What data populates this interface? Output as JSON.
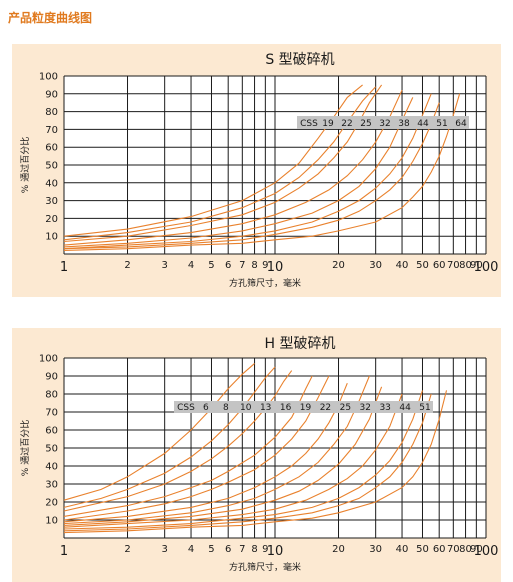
{
  "page": {
    "title": "产品粒度曲线图"
  },
  "colors": {
    "title": "#e07a1f",
    "panel_bg": "#fce9d2",
    "curve": "#e9822e",
    "grid": "#1a1a1a",
    "css_band": "#c4c4c4"
  },
  "chart_data": [
    {
      "type": "line",
      "title": "S 型破碎机",
      "xlabel": "方孔筛尺寸，毫米",
      "ylabel": "% 通过百分比",
      "xscale": "log",
      "xlim": [
        1,
        100
      ],
      "ylim": [
        0,
        100
      ],
      "grid": true,
      "yticks": [
        10,
        20,
        30,
        40,
        50,
        60,
        70,
        80,
        90,
        100
      ],
      "xticks": [
        1,
        2,
        3,
        4,
        5,
        6,
        7,
        8,
        9,
        10,
        20,
        30,
        40,
        50,
        60,
        70,
        80,
        90,
        100
      ],
      "xtick_labels": [
        "1",
        "2",
        "3",
        "4",
        "5",
        "6",
        "7",
        "8",
        "9",
        "10",
        "20",
        "30",
        "40",
        "50",
        "60",
        "70",
        "80",
        "90",
        "100"
      ],
      "css_header": "CSS",
      "css_values": [
        "19",
        "22",
        "25",
        "32",
        "38",
        "44",
        "51",
        "64"
      ],
      "series": [
        {
          "css": 19,
          "x": [
            1,
            2,
            4,
            7,
            10,
            13,
            16,
            19,
            22,
            26
          ],
          "y": [
            10,
            14,
            21,
            30,
            40,
            51,
            65,
            77,
            88,
            95
          ]
        },
        {
          "css": 22,
          "x": [
            1,
            2,
            4,
            7,
            10,
            13,
            16,
            19,
            22,
            26,
            30
          ],
          "y": [
            8,
            12,
            18,
            26,
            34,
            43,
            53,
            63,
            74,
            86,
            94
          ]
        },
        {
          "css": 25,
          "x": [
            1,
            2,
            4,
            7,
            10,
            13,
            16,
            19,
            22,
            25,
            28,
            32
          ],
          "y": [
            7,
            10,
            16,
            22,
            29,
            37,
            45,
            54,
            63,
            74,
            85,
            95
          ]
        },
        {
          "css": 32,
          "x": [
            1,
            2,
            4,
            7,
            10,
            14,
            18,
            22,
            26,
            30,
            35,
            40
          ],
          "y": [
            5,
            8,
            12,
            17,
            22,
            29,
            36,
            44,
            53,
            63,
            77,
            92
          ]
        },
        {
          "css": 38,
          "x": [
            1,
            2,
            4,
            7,
            10,
            15,
            20,
            25,
            30,
            35,
            40,
            45
          ],
          "y": [
            4,
            6,
            9,
            13,
            17,
            23,
            30,
            38,
            48,
            60,
            75,
            88
          ]
        },
        {
          "css": 44,
          "x": [
            1,
            2,
            4,
            7,
            10,
            15,
            20,
            25,
            30,
            35,
            40,
            45,
            50,
            55
          ],
          "y": [
            3,
            5,
            7,
            10,
            13,
            18,
            24,
            30,
            37,
            45,
            54,
            65,
            78,
            90
          ]
        },
        {
          "css": 51,
          "x": [
            1,
            2,
            4,
            7,
            10,
            15,
            20,
            25,
            30,
            35,
            40,
            45,
            50,
            55,
            60
          ],
          "y": [
            3,
            4,
            6,
            8,
            11,
            15,
            19,
            24,
            30,
            36,
            43,
            52,
            62,
            73,
            85
          ]
        },
        {
          "css": 64,
          "x": [
            1,
            2,
            4,
            7,
            10,
            15,
            20,
            30,
            40,
            45,
            50,
            55,
            60,
            65,
            70,
            75
          ],
          "y": [
            2,
            3,
            5,
            6,
            8,
            10,
            13,
            18,
            26,
            32,
            38,
            46,
            55,
            66,
            78,
            90
          ]
        }
      ]
    },
    {
      "type": "line",
      "title": "H 型破碎机",
      "xlabel": "方孔筛尺寸，毫米",
      "ylabel": "% 通过百分比",
      "xscale": "log",
      "xlim": [
        1,
        100
      ],
      "ylim": [
        0,
        100
      ],
      "grid": true,
      "yticks": [
        10,
        20,
        30,
        40,
        50,
        60,
        70,
        80,
        90,
        100
      ],
      "xticks": [
        1,
        2,
        3,
        4,
        5,
        6,
        7,
        8,
        9,
        10,
        20,
        30,
        40,
        50,
        60,
        70,
        80,
        90,
        100
      ],
      "xtick_labels": [
        "1",
        "2",
        "3",
        "4",
        "5",
        "6",
        "7",
        "8",
        "9",
        "10",
        "20",
        "30",
        "40",
        "50",
        "60",
        "70",
        "80",
        "90",
        "100"
      ],
      "css_header": "CSS",
      "css_values": [
        "6",
        "8",
        "10",
        "13",
        "16",
        "19",
        "22",
        "25",
        "32",
        "33",
        "44",
        "51"
      ],
      "series": [
        {
          "css": 6,
          "x": [
            1,
            1.5,
            2,
            3,
            4,
            5,
            6,
            7,
            8
          ],
          "y": [
            21,
            27,
            34,
            47,
            60,
            72,
            83,
            91,
            97
          ]
        },
        {
          "css": 8,
          "x": [
            1,
            1.5,
            2,
            3,
            4,
            5,
            6,
            7,
            8,
            9,
            10
          ],
          "y": [
            17,
            22,
            27,
            36,
            45,
            54,
            63,
            72,
            81,
            89,
            95
          ]
        },
        {
          "css": 10,
          "x": [
            1,
            2,
            3,
            4,
            5,
            6,
            7,
            8,
            9,
            10,
            11,
            12
          ],
          "y": [
            15,
            23,
            30,
            37,
            44,
            51,
            58,
            65,
            72,
            79,
            87,
            93
          ]
        },
        {
          "css": 13,
          "x": [
            1,
            2,
            3,
            4,
            5,
            6,
            8,
            10,
            12,
            13,
            14,
            15
          ],
          "y": [
            12,
            18,
            23,
            28,
            32,
            37,
            46,
            56,
            67,
            75,
            83,
            90
          ]
        },
        {
          "css": 16,
          "x": [
            1,
            2,
            3,
            4,
            5,
            6,
            8,
            10,
            12,
            14,
            16,
            18
          ],
          "y": [
            10,
            15,
            19,
            23,
            27,
            31,
            38,
            46,
            55,
            65,
            78,
            90
          ]
        },
        {
          "css": 19,
          "x": [
            1,
            2,
            4,
            6,
            8,
            10,
            12,
            14,
            16,
            18,
            20,
            22
          ],
          "y": [
            9,
            12,
            17,
            22,
            28,
            34,
            40,
            47,
            55,
            64,
            74,
            86
          ]
        },
        {
          "css": 22,
          "x": [
            1,
            2,
            4,
            6,
            8,
            10,
            13,
            16,
            19,
            22,
            25,
            28
          ],
          "y": [
            8,
            10,
            14,
            18,
            22,
            27,
            34,
            42,
            52,
            62,
            76,
            90
          ]
        },
        {
          "css": 25,
          "x": [
            1,
            2,
            4,
            7,
            10,
            13,
            16,
            20,
            24,
            28,
            32
          ],
          "y": [
            7,
            9,
            12,
            16,
            21,
            26,
            32,
            41,
            52,
            66,
            84
          ]
        },
        {
          "css": 32,
          "x": [
            1,
            2,
            4,
            7,
            10,
            14,
            18,
            22,
            26,
            30,
            35,
            40
          ],
          "y": [
            6,
            8,
            10,
            13,
            16,
            21,
            27,
            33,
            40,
            49,
            62,
            80
          ]
        },
        {
          "css": 33,
          "x": [
            1,
            2,
            4,
            7,
            10,
            15,
            20,
            25,
            30,
            35,
            40,
            45,
            50
          ],
          "y": [
            5,
            6,
            8,
            11,
            13,
            17,
            22,
            28,
            35,
            43,
            53,
            66,
            82
          ]
        },
        {
          "css": 44,
          "x": [
            1,
            2,
            4,
            7,
            10,
            15,
            20,
            25,
            30,
            35,
            40,
            45,
            50,
            55
          ],
          "y": [
            4,
            5,
            7,
            9,
            11,
            14,
            18,
            22,
            28,
            34,
            42,
            52,
            64,
            80
          ]
        },
        {
          "css": 51,
          "x": [
            1,
            2,
            4,
            7,
            10,
            15,
            20,
            30,
            40,
            45,
            50,
            55,
            60,
            65
          ],
          "y": [
            3,
            4,
            6,
            7,
            9,
            11,
            14,
            20,
            28,
            34,
            42,
            52,
            66,
            82
          ]
        }
      ]
    }
  ]
}
